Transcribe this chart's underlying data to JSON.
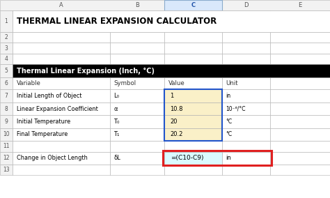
{
  "title": "THERMAL LINEAR EXPANSION CALCULATOR",
  "section_header": "Thermal Linear Expansion (Inch, °C)",
  "col_headers": [
    "Variable",
    "Symbol",
    "Value",
    "Unit"
  ],
  "rows": [
    {
      "variable": "Initial Length of Object",
      "symbol": "L₀",
      "value": "1",
      "unit": "in"
    },
    {
      "variable": "Linear Expansion Coefficient",
      "symbol": "α",
      "value": "10.8",
      "unit": "10⁻⁶/°C"
    },
    {
      "variable": "Initial Temperature",
      "symbol": "T₀",
      "value": "20",
      "unit": "°C"
    },
    {
      "variable": "Final Temperature",
      "symbol": "T₁",
      "value": "20.2",
      "unit": "°C"
    }
  ],
  "formula_row": {
    "variable": "Change in Object Length",
    "symbol": "δL",
    "formula": "=(C10-C9)",
    "unit": "in"
  },
  "col_labels": [
    "A",
    "B",
    "C",
    "D",
    "E"
  ],
  "row_numbers": [
    "1",
    "2",
    "3",
    "4",
    "5",
    "6",
    "7",
    "8",
    "9",
    "10",
    "11",
    "12",
    "13"
  ],
  "bg_color": "#ffffff",
  "header_row_bg": "#000000",
  "header_row_fg": "#ffffff",
  "title_color": "#000000",
  "value_cell_bg": "#FAF0C8",
  "formula_cell_bg": "#DAFAFF",
  "grid_color": "#b0b0b0",
  "row_num_bg": "#f2f2f2",
  "col_letter_bg": "#f2f2f2",
  "col_C_selected_bg": "#d9e8fb",
  "red_border_color": "#e02020",
  "blue_border_color": "#2255cc"
}
